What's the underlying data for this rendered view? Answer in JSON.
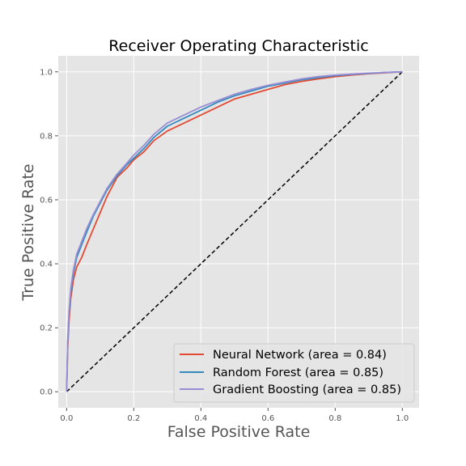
{
  "chart_data": {
    "type": "line",
    "title": "Receiver Operating Characteristic",
    "xlabel": "False Positive Rate",
    "ylabel": "True Positive Rate",
    "xlim": [
      -0.025,
      1.05
    ],
    "ylim": [
      -0.05,
      1.05
    ],
    "xticks": [
      "0.0",
      "0.2",
      "0.4",
      "0.6",
      "0.8",
      "1.0"
    ],
    "yticks": [
      "0.0",
      "0.2",
      "0.4",
      "0.6",
      "0.8",
      "1.0"
    ],
    "grid": true,
    "legend_position": "lower-right",
    "reference_line": {
      "x": [
        0,
        1
      ],
      "y": [
        0,
        1
      ],
      "style": "dashed",
      "color": "#000000"
    },
    "series": [
      {
        "name": "Neural Network (area = 0.84)",
        "color": "#E24A33",
        "x": [
          0,
          0.003,
          0.007,
          0.012,
          0.02,
          0.03,
          0.045,
          0.06,
          0.08,
          0.1,
          0.12,
          0.15,
          0.18,
          0.2,
          0.23,
          0.26,
          0.3,
          0.35,
          0.4,
          0.45,
          0.5,
          0.55,
          0.6,
          0.65,
          0.7,
          0.75,
          0.8,
          0.85,
          0.9,
          0.95,
          1.0
        ],
        "y": [
          0,
          0.13,
          0.22,
          0.29,
          0.35,
          0.39,
          0.42,
          0.46,
          0.51,
          0.56,
          0.61,
          0.67,
          0.7,
          0.725,
          0.75,
          0.785,
          0.815,
          0.84,
          0.865,
          0.89,
          0.915,
          0.93,
          0.945,
          0.96,
          0.97,
          0.978,
          0.985,
          0.99,
          0.994,
          0.997,
          1.0
        ]
      },
      {
        "name": "Random Forest (area = 0.85)",
        "color": "#348ABD",
        "x": [
          0,
          0.003,
          0.007,
          0.012,
          0.02,
          0.03,
          0.045,
          0.06,
          0.08,
          0.1,
          0.12,
          0.15,
          0.18,
          0.2,
          0.23,
          0.26,
          0.3,
          0.35,
          0.4,
          0.45,
          0.5,
          0.55,
          0.6,
          0.65,
          0.7,
          0.75,
          0.8,
          0.85,
          0.9,
          0.95,
          1.0
        ],
        "y": [
          0,
          0.15,
          0.24,
          0.31,
          0.37,
          0.42,
          0.46,
          0.5,
          0.55,
          0.59,
          0.63,
          0.675,
          0.71,
          0.73,
          0.76,
          0.795,
          0.83,
          0.855,
          0.88,
          0.905,
          0.925,
          0.94,
          0.955,
          0.965,
          0.975,
          0.982,
          0.988,
          0.992,
          0.995,
          0.998,
          1.0
        ]
      },
      {
        "name": "Gradient Boosting (area = 0.85)",
        "color": "#988ED5",
        "x": [
          0,
          0.003,
          0.007,
          0.012,
          0.02,
          0.03,
          0.045,
          0.06,
          0.08,
          0.1,
          0.12,
          0.15,
          0.18,
          0.2,
          0.23,
          0.26,
          0.3,
          0.35,
          0.4,
          0.45,
          0.5,
          0.55,
          0.6,
          0.65,
          0.7,
          0.75,
          0.8,
          0.85,
          0.9,
          0.95,
          1.0
        ],
        "y": [
          0,
          0.16,
          0.25,
          0.32,
          0.38,
          0.43,
          0.47,
          0.51,
          0.555,
          0.595,
          0.635,
          0.68,
          0.715,
          0.74,
          0.77,
          0.805,
          0.84,
          0.865,
          0.89,
          0.91,
          0.93,
          0.945,
          0.958,
          0.968,
          0.978,
          0.985,
          0.99,
          0.993,
          0.996,
          0.998,
          1.0
        ]
      }
    ]
  }
}
